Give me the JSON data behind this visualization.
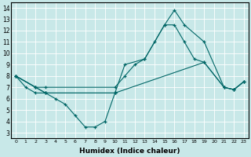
{
  "xlabel": "Humidex (Indice chaleur)",
  "bg_color": "#c8e8e8",
  "grid_color": "#ffffff",
  "line_color": "#006666",
  "xlim": [
    -0.5,
    23.5
  ],
  "ylim": [
    2.5,
    14.5
  ],
  "yticks": [
    3,
    4,
    5,
    6,
    7,
    8,
    9,
    10,
    11,
    12,
    13,
    14
  ],
  "xticks": [
    0,
    1,
    2,
    3,
    4,
    5,
    6,
    7,
    8,
    9,
    10,
    11,
    12,
    13,
    14,
    15,
    16,
    17,
    18,
    19,
    20,
    21,
    22,
    23
  ],
  "lines": [
    {
      "x": [
        0,
        1,
        2,
        3,
        4,
        5,
        6,
        7,
        8,
        9,
        10
      ],
      "y": [
        8,
        7,
        6.5,
        6.5,
        6.0,
        5.5,
        4.5,
        3.5,
        3.5,
        4.0,
        6.5
      ]
    },
    {
      "x": [
        0,
        2,
        3,
        10,
        19,
        21,
        22,
        23
      ],
      "y": [
        8,
        7,
        6.5,
        6.5,
        9.2,
        7.0,
        6.8,
        7.5
      ]
    },
    {
      "x": [
        0,
        2,
        3,
        10,
        11,
        13,
        15,
        16,
        17,
        19,
        21,
        22,
        23
      ],
      "y": [
        8,
        7,
        6.5,
        6.5,
        9.0,
        9.5,
        12.5,
        13.8,
        12.5,
        11.0,
        7.0,
        6.8,
        7.5
      ]
    },
    {
      "x": [
        0,
        2,
        3,
        10,
        11,
        12,
        13,
        14,
        15,
        16,
        17,
        18,
        19,
        21,
        22,
        23
      ],
      "y": [
        8,
        7,
        7,
        7.0,
        8.0,
        9.0,
        9.5,
        11.0,
        12.5,
        12.5,
        11.0,
        9.5,
        9.2,
        7.0,
        6.8,
        7.5
      ]
    }
  ]
}
